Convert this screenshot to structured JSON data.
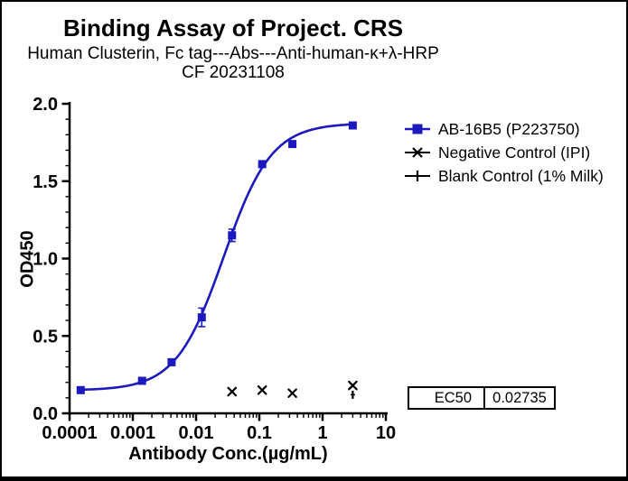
{
  "header": {
    "title": "Binding Assay of Project. CRS",
    "subtitle": "Human Clusterin, Fc tag---Abs---Anti-human-κ+λ-HRP",
    "date_line": "CF 20231108"
  },
  "chart_data": {
    "type": "scatter",
    "title": "Binding Assay of Project. CRS",
    "xlabel": "Antibody Conc.(µg/mL)",
    "ylabel": "OD450",
    "x_scale": "log",
    "xlim": [
      0.0001,
      10
    ],
    "ylim": [
      0.0,
      2.0
    ],
    "grid": false,
    "legend_position": "right",
    "x_major_ticks": [
      0.0001,
      0.001,
      0.01,
      0.1,
      1,
      10
    ],
    "x_tick_labels": [
      "0.0001",
      "0.001",
      "0.01",
      "0.1",
      "1",
      "10"
    ],
    "y_major_ticks": [
      0.0,
      0.5,
      1.0,
      1.5,
      2.0
    ],
    "y_tick_labels": [
      "0.0",
      "0.5",
      "1.0",
      "1.5",
      "2.0"
    ],
    "y_minor_step": 0.1,
    "series": [
      {
        "name": "AB-16B5 (P223750)",
        "marker": "square",
        "color": "#1c1abe",
        "x": [
          0.00015,
          0.0014,
          0.0041,
          0.0123,
          0.037,
          0.111,
          0.333,
          3
        ],
        "y": [
          0.15,
          0.21,
          0.33,
          0.62,
          1.15,
          1.61,
          1.74,
          1.86
        ],
        "yerr": [
          0,
          0,
          0,
          0.06,
          0.04,
          0,
          0,
          0
        ],
        "fit": {
          "type": "4PL",
          "bottom": 0.148,
          "top": 1.875,
          "ec50": 0.02735,
          "hill": 1.15
        }
      },
      {
        "name": "Negative Control (IPI)",
        "marker": "x",
        "color": "#000000",
        "x": [
          0.037,
          0.111,
          0.333,
          3
        ],
        "y": [
          0.14,
          0.15,
          0.13,
          0.18
        ]
      },
      {
        "name": "Blank Control (1% Milk)",
        "marker": "plus",
        "color": "#000000",
        "x": [
          3
        ],
        "y": [
          0.12
        ]
      }
    ]
  },
  "ec50_table": {
    "label": "EC50",
    "value": "0.02735"
  }
}
